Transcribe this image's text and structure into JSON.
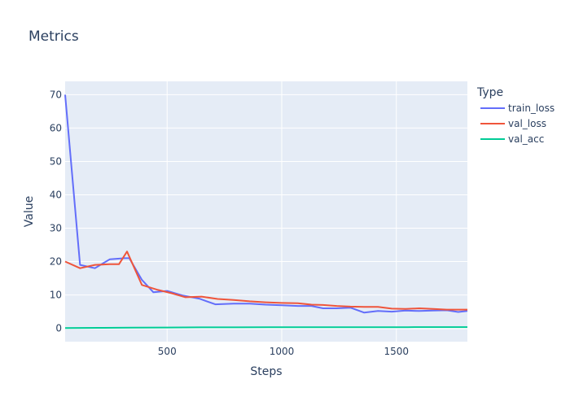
{
  "chart_data": {
    "type": "line",
    "title": "Metrics",
    "xlabel": "Steps",
    "ylabel": "Value",
    "legend_title": "Type",
    "legend_position": "right",
    "xlim": [
      55,
      1810
    ],
    "ylim": [
      -4,
      74
    ],
    "xticks": [
      500,
      1000,
      1500
    ],
    "yticks": [
      0,
      10,
      20,
      30,
      40,
      50,
      60,
      70
    ],
    "grid": true,
    "background": "#E5ECF6",
    "series": [
      {
        "name": "train_loss",
        "color": "#636EFA",
        "x": [
          55,
          120,
          185,
          250,
          315,
          335,
          390,
          440,
          500,
          570,
          640,
          710,
          790,
          860,
          930,
          1000,
          1070,
          1130,
          1180,
          1240,
          1300,
          1360,
          1420,
          1480,
          1540,
          1600,
          1660,
          1720,
          1770,
          1810
        ],
        "y": [
          70,
          19,
          18,
          20.7,
          21,
          21,
          14.5,
          10.8,
          11.2,
          9.8,
          8.9,
          7.2,
          7.4,
          7.4,
          7.1,
          6.9,
          6.7,
          6.7,
          6.0,
          6.0,
          6.2,
          4.7,
          5.2,
          5.0,
          5.3,
          5.2,
          5.3,
          5.4,
          4.9,
          5.2
        ]
      },
      {
        "name": "val_loss",
        "color": "#EF553B",
        "x": [
          55,
          120,
          185,
          250,
          290,
          325,
          390,
          460,
          520,
          580,
          650,
          720,
          790,
          860,
          930,
          1000,
          1070,
          1130,
          1180,
          1240,
          1300,
          1360,
          1420,
          1480,
          1540,
          1600,
          1660,
          1720,
          1770,
          1810
        ],
        "y": [
          20,
          18,
          19,
          19.2,
          19.2,
          23,
          13,
          11.5,
          10.5,
          9.3,
          9.5,
          8.8,
          8.5,
          8.1,
          7.8,
          7.6,
          7.5,
          7.1,
          7.0,
          6.7,
          6.5,
          6.4,
          6.4,
          5.9,
          5.8,
          6.0,
          5.8,
          5.6,
          5.6,
          5.6
        ]
      },
      {
        "name": "val_acc",
        "color": "#00CC96",
        "x": [
          55,
          200,
          350,
          500,
          650,
          800,
          950,
          1100,
          1250,
          1400,
          1550,
          1700,
          1810
        ],
        "y": [
          0.1,
          0.15,
          0.2,
          0.25,
          0.28,
          0.3,
          0.32,
          0.33,
          0.34,
          0.35,
          0.35,
          0.36,
          0.36
        ]
      }
    ]
  }
}
